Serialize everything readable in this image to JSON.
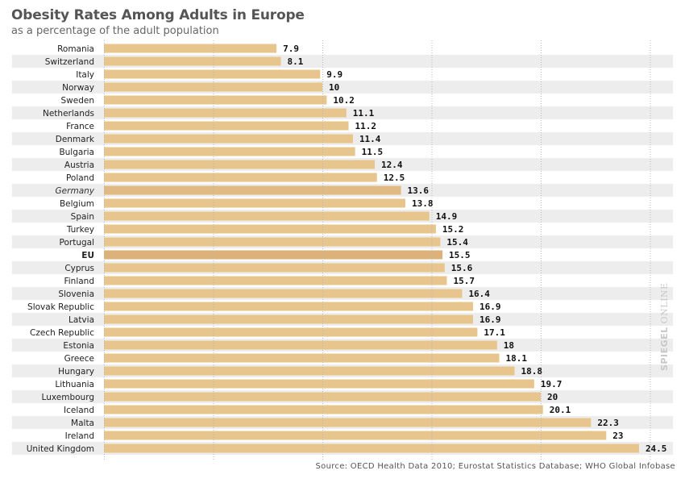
{
  "chart_data": {
    "type": "bar",
    "orientation": "horizontal",
    "title": "Obesity Rates Among Adults in Europe",
    "subtitle": "as a percentage of the adult population",
    "xlabel": "",
    "ylabel": "",
    "xlim": [
      0,
      25
    ],
    "grid": true,
    "grid_interval": 5,
    "categories": [
      "Romania",
      "Switzerland",
      "Italy",
      "Norway",
      "Sweden",
      "Netherlands",
      "France",
      "Denmark",
      "Bulgaria",
      "Austria",
      "Poland",
      "Germany",
      "Belgium",
      "Spain",
      "Turkey",
      "Portugal",
      "EU",
      "Cyprus",
      "Finland",
      "Slovenia",
      "Slovak Republic",
      "Latvia",
      "Czech Republic",
      "Estonia",
      "Greece",
      "Hungary",
      "Lithuania",
      "Luxembourg",
      "Iceland",
      "Malta",
      "Ireland",
      "United Kingdom"
    ],
    "values": [
      7.9,
      8.1,
      9.9,
      10,
      10.2,
      11.1,
      11.2,
      11.4,
      11.5,
      12.4,
      12.5,
      13.6,
      13.8,
      14.9,
      15.2,
      15.4,
      15.5,
      15.6,
      15.7,
      16.4,
      16.9,
      16.9,
      17.1,
      18,
      18.1,
      18.8,
      19.7,
      20,
      20.1,
      22.3,
      23,
      24.5
    ],
    "value_labels": [
      "7.9",
      "8.1",
      "9.9",
      "10",
      "10.2",
      "11.1",
      "11.2",
      "11.4",
      "11.5",
      "12.4",
      "12.5",
      "13.6",
      "13.8",
      "14.9",
      "15.2",
      "15.4",
      "15.5",
      "15.6",
      "15.7",
      "16.4",
      "16.9",
      "16.9",
      "17.1",
      "18",
      "18.1",
      "18.8",
      "19.7",
      "20",
      "20.1",
      "22.3",
      "23",
      "24.5"
    ],
    "highlight": {
      "EU": "bold",
      "Germany": "italic"
    },
    "colors": {
      "bar": "#e8c58c",
      "bar_eu": "#dcb27a",
      "bar_germany": "#e0ba82",
      "stripe": "#ededed"
    }
  },
  "source": "Source: OECD Health Data 2010; Eurostat Statistics Database; WHO Global Infobase",
  "brand": {
    "bold": "SPIEGEL",
    "light": "ONLINE"
  }
}
